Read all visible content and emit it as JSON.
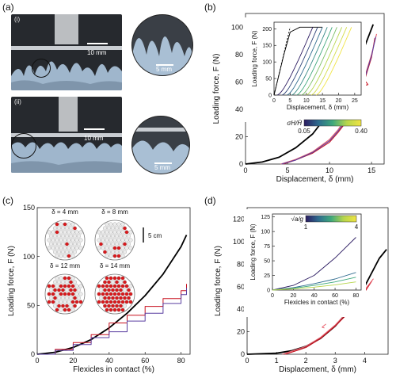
{
  "figure": {
    "panel_labels": [
      "(a)",
      "(b)",
      "(c)",
      "(d)"
    ]
  },
  "panel_a": {
    "frames": [
      "(i)",
      "(ii)"
    ],
    "scale_labels": [
      "10 mm",
      "5 mm",
      "10 mm",
      "5 mm"
    ],
    "colors": {
      "photo_bg": "#26292e",
      "flexicle": "#9fb6cc",
      "plate": "#c9cdd2"
    }
  },
  "chart_data": [
    {
      "panel": "(b)",
      "type": "line",
      "xlabel": "Displacement, δ (mm)",
      "ylabel": "Loading force, F (N)",
      "xlim": [
        0,
        16.5
      ],
      "ylim": [
        0,
        110
      ],
      "xticks": [
        0,
        5,
        10,
        15
      ],
      "yticks": [
        0,
        20,
        40,
        60,
        80,
        100
      ],
      "series": [
        {
          "color": "#000000",
          "x": [
            0,
            2,
            4,
            6,
            8,
            10,
            12,
            14,
            15.2
          ],
          "y": [
            0,
            1.5,
            5,
            12,
            22,
            38,
            58,
            83,
            102
          ]
        },
        {
          "color": "#c8101e",
          "x": [
            4.5,
            6,
            8,
            10,
            11,
            12,
            13,
            14,
            15,
            15.4
          ],
          "y": [
            0,
            3,
            8,
            16,
            23,
            31,
            44,
            58,
            78,
            92
          ]
        },
        {
          "color": "#e8606d",
          "x": [
            4.2,
            6,
            8,
            10,
            11,
            12,
            13,
            14,
            15,
            15.6
          ],
          "y": [
            0,
            3.5,
            9,
            18,
            25,
            34,
            46,
            60,
            80,
            95
          ]
        },
        {
          "color": "#5a3fa0",
          "x": [
            4.3,
            6,
            8,
            10,
            11,
            12,
            13,
            14,
            15,
            15.5
          ],
          "y": [
            0,
            3,
            8.5,
            17,
            24,
            32,
            45,
            59,
            79,
            93
          ]
        }
      ],
      "colorbar": {
        "label": "σH/H̄",
        "min": 0.05,
        "max": 0.4,
        "tick_labels": [
          "0.05",
          "0.40"
        ],
        "colors": [
          "#2b1b61",
          "#2e6b8e",
          "#3ea87c",
          "#b7d64c",
          "#f0e442"
        ]
      },
      "inset": {
        "xlabel": "Displacement, δ (mm)",
        "ylabel": "Loading force, F (N)",
        "xlim": [
          0,
          27
        ],
        "ylim": [
          0,
          220
        ],
        "xticks": [
          0,
          5,
          10,
          15,
          20,
          25
        ],
        "yticks": [
          0,
          50,
          100,
          150,
          200
        ],
        "reference": {
          "x": [
            0,
            1.5,
            3,
            5,
            8,
            12,
            15
          ],
          "y": [
            0,
            60,
            120,
            190,
            205,
            205,
            205
          ]
        },
        "curve_starts": [
          1,
          2.5,
          4,
          5.5,
          7,
          8.5,
          10,
          11.5,
          13
        ],
        "curve_span": 11,
        "curve_max": 205
      }
    },
    {
      "panel": "(c)",
      "type": "line",
      "xlabel": "Flexicles in contact (%)",
      "ylabel": "Loading force, F (N)",
      "xlim": [
        0,
        85
      ],
      "ylim": [
        0,
        150
      ],
      "xticks": [
        0,
        20,
        40,
        60,
        80
      ],
      "yticks": [
        0,
        50,
        100,
        150
      ],
      "series": [
        {
          "color": "#000000",
          "x": [
            0,
            10,
            20,
            30,
            40,
            50,
            60,
            70,
            80,
            83
          ],
          "y": [
            0,
            2,
            7,
            15,
            27,
            42,
            60,
            82,
            110,
            122
          ]
        },
        {
          "color": "#c8101e",
          "x": [
            0,
            10,
            20,
            30,
            40,
            50,
            60,
            70,
            80,
            83
          ],
          "y": [
            0,
            5,
            12,
            20,
            32,
            40,
            49,
            57,
            65,
            72
          ]
        },
        {
          "color": "#5a3fa0",
          "x": [
            0,
            10,
            20,
            30,
            40,
            50,
            60,
            70,
            80,
            83
          ],
          "y": [
            0,
            4,
            10,
            17,
            23,
            34,
            42,
            52,
            61,
            68
          ]
        }
      ],
      "annotations": [
        "δ = 4 mm",
        "δ = 8 mm",
        "δ = 12 mm",
        "δ = 14 mm"
      ],
      "scale_label": "5 cm",
      "contact_fractions": [
        0.08,
        0.12,
        0.5,
        0.85
      ]
    },
    {
      "panel": "(d)",
      "type": "line",
      "xlabel": "Displacement, δ (mm)",
      "ylabel": "Loading force, F (N)",
      "xlim": [
        0,
        4.8
      ],
      "ylim": [
        0,
        130
      ],
      "xticks": [
        0,
        1,
        2,
        3,
        4
      ],
      "yticks": [
        0,
        20,
        40,
        60,
        80,
        100,
        120
      ],
      "series": [
        {
          "color": "#000000",
          "x": [
            0,
            1,
            1.5,
            2,
            2.5,
            3,
            3.5,
            4,
            4.5,
            4.75
          ],
          "y": [
            0,
            1,
            3,
            7,
            14,
            25,
            40,
            60,
            85,
            93
          ]
        },
        {
          "color": "#c8101e",
          "x": [
            1.3,
            2,
            2.5,
            3,
            3.5,
            4,
            4.25
          ],
          "y": [
            0,
            6,
            14,
            25,
            38,
            55,
            65
          ]
        },
        {
          "color": "#e8606d",
          "x": [
            1.2,
            2,
            2.5,
            3,
            3.5,
            4,
            4.3
          ],
          "y": [
            0,
            7,
            15,
            26,
            40,
            57,
            67
          ]
        }
      ],
      "colorbar": {
        "label": "√a/g",
        "min": 1,
        "max": 4,
        "tick_labels": [
          "1",
          "4"
        ],
        "colors": [
          "#2b1b61",
          "#2e6b8e",
          "#3ea87c",
          "#b7d64c",
          "#f0e442"
        ]
      },
      "inset": {
        "xlabel": "Flexicles in contact (%)",
        "ylabel": "Loading force, F (N)",
        "xlim": [
          0,
          85
        ],
        "ylim": [
          0,
          130
        ],
        "xticks": [
          0,
          20,
          40,
          60,
          80
        ],
        "yticks": [
          0,
          25,
          50,
          75,
          100,
          125
        ],
        "series": [
          {
            "color": "#2b1b61",
            "x": [
              0,
              20,
              40,
              60,
              80
            ],
            "y": [
              0,
              8,
              25,
              55,
              90
            ]
          },
          {
            "color": "#2e6b8e",
            "x": [
              0,
              20,
              40,
              60,
              80
            ],
            "y": [
              0,
              4,
              11,
              19,
              30
            ]
          },
          {
            "color": "#3ea87c",
            "x": [
              0,
              20,
              40,
              60,
              80
            ],
            "y": [
              0,
              3,
              8,
              14,
              22
            ]
          },
          {
            "color": "#b7d64c",
            "x": [
              0,
              20,
              40,
              60,
              80
            ],
            "y": [
              0,
              2,
              5,
              9,
              14
            ]
          }
        ]
      }
    }
  ]
}
